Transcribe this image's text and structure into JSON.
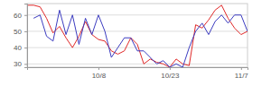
{
  "chart_data": {
    "type": "line",
    "categories": [
      null,
      null,
      null,
      null,
      null,
      null,
      null,
      null,
      null,
      null,
      null,
      "10/8",
      null,
      null,
      null,
      null,
      null,
      null,
      null,
      null,
      null,
      null,
      "10/23",
      null,
      null,
      null,
      null,
      null,
      null,
      null,
      null,
      null,
      null,
      "11/7",
      null
    ],
    "series": [
      {
        "color": "#e02828",
        "values": [
          66,
          66,
          65,
          58,
          49,
          53,
          46,
          40,
          47,
          56,
          48,
          45,
          44,
          38,
          36,
          38,
          46,
          42,
          30,
          33,
          31,
          30,
          28,
          33,
          30,
          29,
          54,
          52,
          57,
          63,
          66,
          58,
          52,
          48,
          50
        ]
      },
      {
        "color": "#3c3cc0",
        "values": [
          null,
          58,
          60,
          47,
          44,
          63,
          48,
          60,
          42,
          58,
          48,
          60,
          50,
          34,
          40,
          46,
          46,
          38,
          38,
          34,
          30,
          32,
          28,
          30,
          28,
          40,
          50,
          55,
          48,
          56,
          60,
          55,
          60,
          60,
          50
        ]
      }
    ],
    "ylim": [
      28,
      67
    ],
    "yticks": [
      30,
      40,
      50,
      60
    ],
    "grid": true
  }
}
